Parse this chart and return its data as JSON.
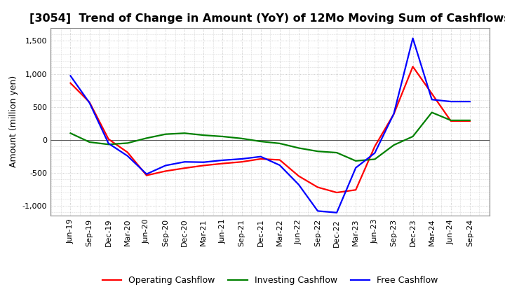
{
  "title": "[3054]  Trend of Change in Amount (YoY) of 12Mo Moving Sum of Cashflows",
  "ylabel": "Amount (million yen)",
  "labels": [
    "Jun-19",
    "Sep-19",
    "Dec-19",
    "Mar-20",
    "Jun-20",
    "Sep-20",
    "Dec-20",
    "Mar-21",
    "Jun-21",
    "Sep-21",
    "Dec-21",
    "Mar-22",
    "Jun-22",
    "Sep-22",
    "Dec-22",
    "Mar-23",
    "Jun-23",
    "Sep-23",
    "Dec-23",
    "Mar-24",
    "Jun-24",
    "Sep-24"
  ],
  "operating": [
    860,
    570,
    10,
    -190,
    -540,
    -475,
    -430,
    -390,
    -360,
    -335,
    -290,
    -305,
    -550,
    -720,
    -800,
    -760,
    -100,
    390,
    1110,
    700,
    285,
    285
  ],
  "investing": [
    100,
    -35,
    -70,
    -50,
    25,
    85,
    100,
    70,
    50,
    20,
    -25,
    -55,
    -125,
    -175,
    -195,
    -320,
    -295,
    -80,
    50,
    415,
    295,
    295
  ],
  "free": [
    970,
    560,
    -55,
    -245,
    -520,
    -390,
    -335,
    -340,
    -310,
    -290,
    -255,
    -385,
    -680,
    -1080,
    -1105,
    -425,
    -200,
    395,
    1540,
    610,
    580,
    580
  ],
  "operating_color": "#ff0000",
  "investing_color": "#008000",
  "free_color": "#0000ff",
  "ylim": [
    -1150,
    1700
  ],
  "yticks": [
    -1000,
    -500,
    0,
    500,
    1000,
    1500
  ],
  "background_color": "#ffffff",
  "grid_color": "#bbbbbb",
  "title_fontsize": 11.5,
  "ylabel_fontsize": 9,
  "tick_fontsize": 8,
  "legend_fontsize": 9
}
